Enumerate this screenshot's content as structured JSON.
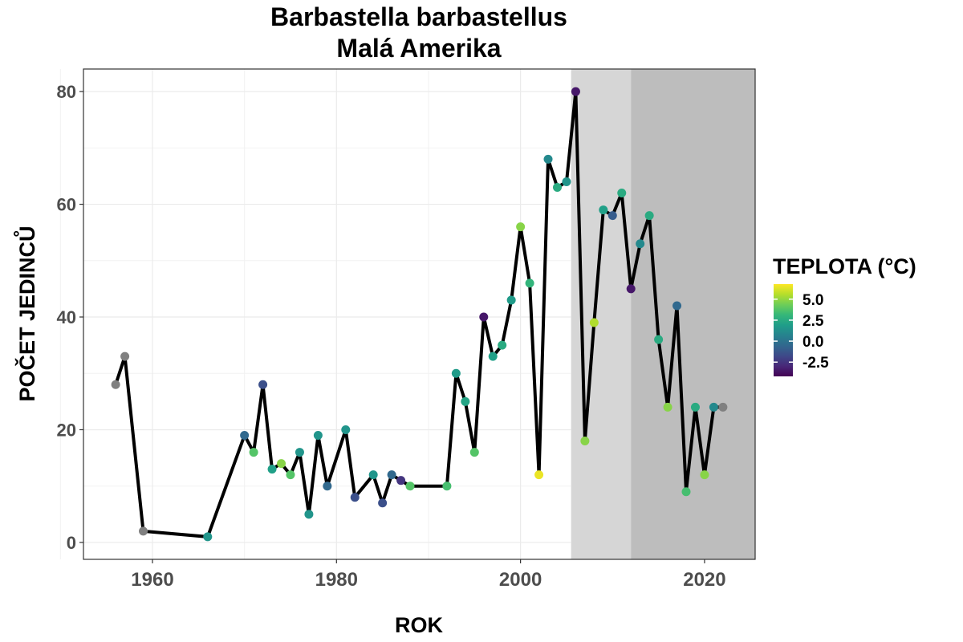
{
  "chart_data": {
    "type": "line",
    "title": "Barbastella barbastellus",
    "subtitle": "Malá Amerika",
    "xlabel": "ROK",
    "ylabel": "POČET JEDINCŮ",
    "xlim": [
      1952.5,
      2025.5
    ],
    "ylim": [
      -3,
      84
    ],
    "x_ticks": [
      1960,
      1980,
      2000,
      2020
    ],
    "y_ticks": [
      0,
      20,
      40,
      60,
      80
    ],
    "grid": true,
    "shaded_periods": [
      {
        "from": 2005.5,
        "to": 2012,
        "color": "#d6d6d6"
      },
      {
        "from": 2012,
        "to": 2025.5,
        "color": "#bdbdbd"
      }
    ],
    "legend": {
      "title": "TEPLOTA (°C)",
      "position": "right",
      "labels": [
        "5.0",
        "2.5",
        "0.0",
        "-2.5"
      ],
      "label_values": [
        5.0,
        2.5,
        0.0,
        -2.5
      ],
      "range": [
        -4.2,
        6.8
      ],
      "na_color": "#808080",
      "colors": [
        "#440154",
        "#482878",
        "#3e4989",
        "#31688e",
        "#26828e",
        "#1f9e89",
        "#35b779",
        "#6ece58",
        "#b5de2b",
        "#fde725"
      ]
    },
    "line_color": "#000000",
    "series": [
      {
        "x": [
          1956,
          1957,
          1959,
          1966,
          1970,
          1971,
          1972,
          1973,
          1974,
          1975,
          1976,
          1977,
          1978,
          1979,
          1981,
          1982,
          1984,
          1985,
          1986,
          1987,
          1988,
          1992,
          1993,
          1994,
          1995,
          1996,
          1997,
          1998,
          1999,
          2000,
          2001,
          2002,
          2003,
          2004,
          2005,
          2006,
          2007,
          2008,
          2009,
          2010,
          2011,
          2012,
          2013,
          2014,
          2015,
          2016,
          2017,
          2018,
          2019,
          2020,
          2021,
          2022
        ],
        "y": [
          28,
          33,
          2,
          1,
          19,
          16,
          28,
          13,
          14,
          12,
          16,
          5,
          19,
          10,
          20,
          8,
          12,
          7,
          12,
          11,
          10,
          10,
          30,
          25,
          16,
          40,
          33,
          35,
          43,
          56,
          46,
          12,
          68,
          63,
          64,
          80,
          18,
          39,
          59,
          58,
          62,
          45,
          53,
          58,
          36,
          24,
          42,
          9,
          24,
          12,
          24,
          24
        ],
        "temperature": [
          null,
          null,
          null,
          1.5,
          -0.5,
          3.8,
          -1.5,
          2.0,
          4.8,
          3.8,
          1.5,
          1.5,
          1.5,
          -0.5,
          1.5,
          -1.5,
          1.5,
          -1.5,
          -0.5,
          -2.5,
          3.8,
          3.5,
          1.8,
          2.2,
          3.8,
          -3.5,
          2.0,
          2.5,
          1.8,
          4.8,
          3.0,
          6.5,
          1.0,
          2.5,
          1.5,
          -3.5,
          4.8,
          5.5,
          2.0,
          -1.0,
          2.5,
          -3.5,
          1.0,
          2.5,
          2.5,
          4.8,
          -0.5,
          3.5,
          2.5,
          4.8,
          1.0,
          null
        ]
      }
    ]
  }
}
